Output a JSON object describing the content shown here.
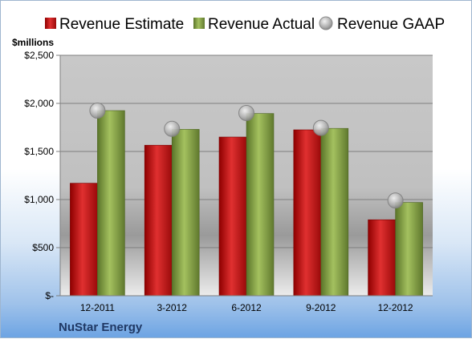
{
  "chart_data": {
    "type": "bar",
    "title": "",
    "company": "NuStar Energy",
    "unit_label": "$millions",
    "categories": [
      "12-2011",
      "3-2012",
      "6-2012",
      "9-2012",
      "12-2012"
    ],
    "series": [
      {
        "name": "Revenue Estimate",
        "type": "bar",
        "color": "#c00000",
        "values": [
          1170,
          1565,
          1650,
          1725,
          790
        ]
      },
      {
        "name": "Revenue Actual",
        "type": "bar",
        "color": "#77933c",
        "values": [
          1925,
          1730,
          1895,
          1740,
          970
        ]
      },
      {
        "name": "Revenue GAAP",
        "type": "marker",
        "color": "#a6a6a6",
        "values": [
          1925,
          1735,
          1900,
          1745,
          990
        ]
      }
    ],
    "ylim": [
      0,
      2500
    ],
    "yticks": [
      0,
      500,
      1000,
      1500,
      2000,
      2500
    ],
    "ytick_labels": [
      "$-",
      "$500",
      "$1,000",
      "$1,500",
      "$2,000",
      "$2,500"
    ],
    "grid": true,
    "legend_position": "top"
  }
}
